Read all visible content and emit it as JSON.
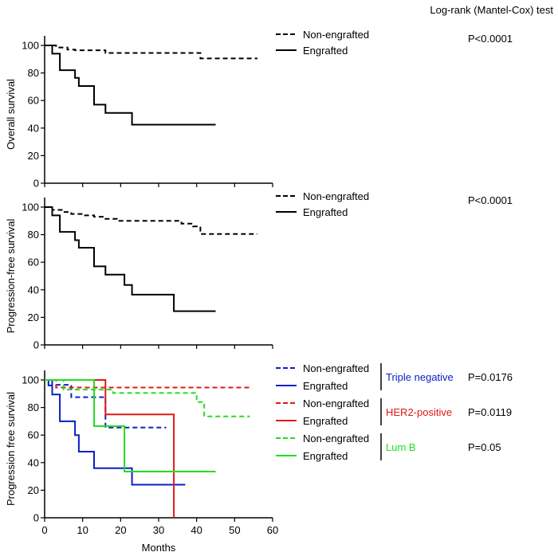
{
  "header": "Log-rank (Mantel-Cox) test",
  "xlabel": "Months",
  "chart_data": [
    {
      "type": "line",
      "title": "",
      "ylabel": "Overall survival",
      "xlim": [
        0,
        60
      ],
      "ylim": [
        0,
        100
      ],
      "yticks": [
        0,
        20,
        40,
        60,
        80,
        100
      ],
      "xticks": [],
      "pvalue": "P<0.0001",
      "legend": [
        {
          "label": "Non-engrafted",
          "color": "#000000",
          "dash": true
        },
        {
          "label": "Engrafted",
          "color": "#000000",
          "dash": false
        }
      ],
      "series": [
        {
          "name": "Non-engrafted",
          "color": "#000000",
          "dashed": true,
          "x": [
            0,
            3,
            3,
            6,
            6,
            8,
            8,
            16,
            16,
            41,
            41,
            56
          ],
          "y": [
            100,
            100,
            98.5,
            98.5,
            97,
            97,
            96.5,
            96.5,
            94.5,
            94.5,
            90.5,
            90.5
          ]
        },
        {
          "name": "Engrafted",
          "color": "#000000",
          "dashed": false,
          "x": [
            0,
            2,
            2,
            4,
            4,
            8,
            8,
            9,
            9,
            13,
            13,
            16,
            16,
            23,
            23,
            45
          ],
          "y": [
            100,
            100,
            94,
            94,
            82,
            82,
            76.5,
            76.5,
            70.5,
            70.5,
            57,
            57,
            51,
            51,
            42.5,
            42.5
          ]
        }
      ]
    },
    {
      "type": "line",
      "title": "",
      "ylabel": "Progression-free survival",
      "xlim": [
        0,
        60
      ],
      "ylim": [
        0,
        100
      ],
      "yticks": [
        0,
        20,
        40,
        60,
        80,
        100
      ],
      "xticks": [],
      "pvalue": "P<0.0001",
      "legend": [
        {
          "label": "Non-engrafted",
          "color": "#000000",
          "dash": true
        },
        {
          "label": "Engrafted",
          "color": "#000000",
          "dash": false
        }
      ],
      "series": [
        {
          "name": "Non-engrafted",
          "color": "#000000",
          "dashed": true,
          "x": [
            0,
            2,
            2,
            5,
            5,
            7,
            7,
            10,
            10,
            13,
            13,
            16,
            16,
            19,
            19,
            36,
            36,
            39,
            39,
            41,
            41,
            56
          ],
          "y": [
            100,
            100,
            98,
            98,
            96.5,
            96.5,
            95,
            95,
            94,
            94,
            93,
            93,
            91.5,
            91.5,
            90,
            90,
            88,
            88,
            86,
            86,
            80.5,
            80.5
          ]
        },
        {
          "name": "Engrafted",
          "color": "#000000",
          "dashed": false,
          "x": [
            0,
            2,
            2,
            4,
            4,
            8,
            8,
            9,
            9,
            13,
            13,
            16,
            16,
            21,
            21,
            23,
            23,
            34,
            34,
            45
          ],
          "y": [
            100,
            100,
            94,
            94,
            82,
            82,
            76,
            76,
            70.5,
            70.5,
            57,
            57,
            51,
            51,
            43.5,
            43.5,
            36.5,
            36.5,
            24.5,
            24.5
          ]
        }
      ]
    },
    {
      "type": "line",
      "title": "",
      "ylabel": "Progression free survival",
      "xlim": [
        0,
        60
      ],
      "ylim": [
        0,
        100
      ],
      "yticks": [
        0,
        20,
        40,
        60,
        80,
        100
      ],
      "xticks": [
        0,
        10,
        20,
        30,
        40,
        50,
        60
      ],
      "legend": [
        {
          "label": "Non-engrafted",
          "color": "#0a1fc4",
          "dash": true
        },
        {
          "label": "Engrafted",
          "color": "#0a1fc4",
          "dash": false
        },
        {
          "label": "Non-engrafted",
          "color": "#e01818",
          "dash": true
        },
        {
          "label": "Engrafted",
          "color": "#e01818",
          "dash": false
        },
        {
          "label": "Non-engrafted",
          "color": "#22dd22",
          "dash": true
        },
        {
          "label": "Engrafted",
          "color": "#22dd22",
          "dash": false
        }
      ],
      "groups": [
        {
          "label": "Triple negative",
          "color": "#0a1fc4",
          "pvalue": "P=0.0176"
        },
        {
          "label": "HER2-positive",
          "color": "#e01818",
          "pvalue": "P=0.0119"
        },
        {
          "label": "Lum B",
          "color": "#22dd22",
          "pvalue": "P=0.05"
        }
      ],
      "series": [
        {
          "name": "Triple negative Non-engrafted",
          "color": "#0a1fc4",
          "dashed": true,
          "x": [
            0,
            2,
            2,
            7,
            7,
            16,
            16,
            32
          ],
          "y": [
            100,
            100,
            96.5,
            96.5,
            87.5,
            87.5,
            65.5,
            65.5
          ]
        },
        {
          "name": "Triple negative Engrafted",
          "color": "#0a1fc4",
          "dashed": false,
          "x": [
            0,
            1,
            1,
            2,
            2,
            4,
            4,
            8,
            8,
            9,
            9,
            13,
            13,
            23,
            23,
            37
          ],
          "y": [
            100,
            100,
            96,
            96,
            89.5,
            89.5,
            70,
            70,
            60,
            60,
            48,
            48,
            36,
            36,
            24,
            24
          ]
        },
        {
          "name": "HER2-positive Non-engrafted",
          "color": "#e01818",
          "dashed": true,
          "x": [
            0,
            3,
            3,
            54
          ],
          "y": [
            100,
            100,
            94.5,
            94.5
          ]
        },
        {
          "name": "HER2-positive Engrafted",
          "color": "#e01818",
          "dashed": false,
          "x": [
            0,
            16,
            16,
            34,
            34
          ],
          "y": [
            100,
            100,
            75,
            75,
            0
          ]
        },
        {
          "name": "Lum B Non-engrafted",
          "color": "#22dd22",
          "dashed": true,
          "x": [
            0,
            5,
            5,
            18,
            18,
            40,
            40,
            42,
            42,
            54
          ],
          "y": [
            100,
            100,
            93,
            93,
            90.5,
            90.5,
            84,
            84,
            73.5,
            73.5
          ]
        },
        {
          "name": "Lum B Engrafted",
          "color": "#22dd22",
          "dashed": false,
          "x": [
            0,
            13,
            13,
            21,
            21,
            45
          ],
          "y": [
            100,
            100,
            66.5,
            66.5,
            33.5,
            33.5
          ]
        }
      ]
    }
  ]
}
